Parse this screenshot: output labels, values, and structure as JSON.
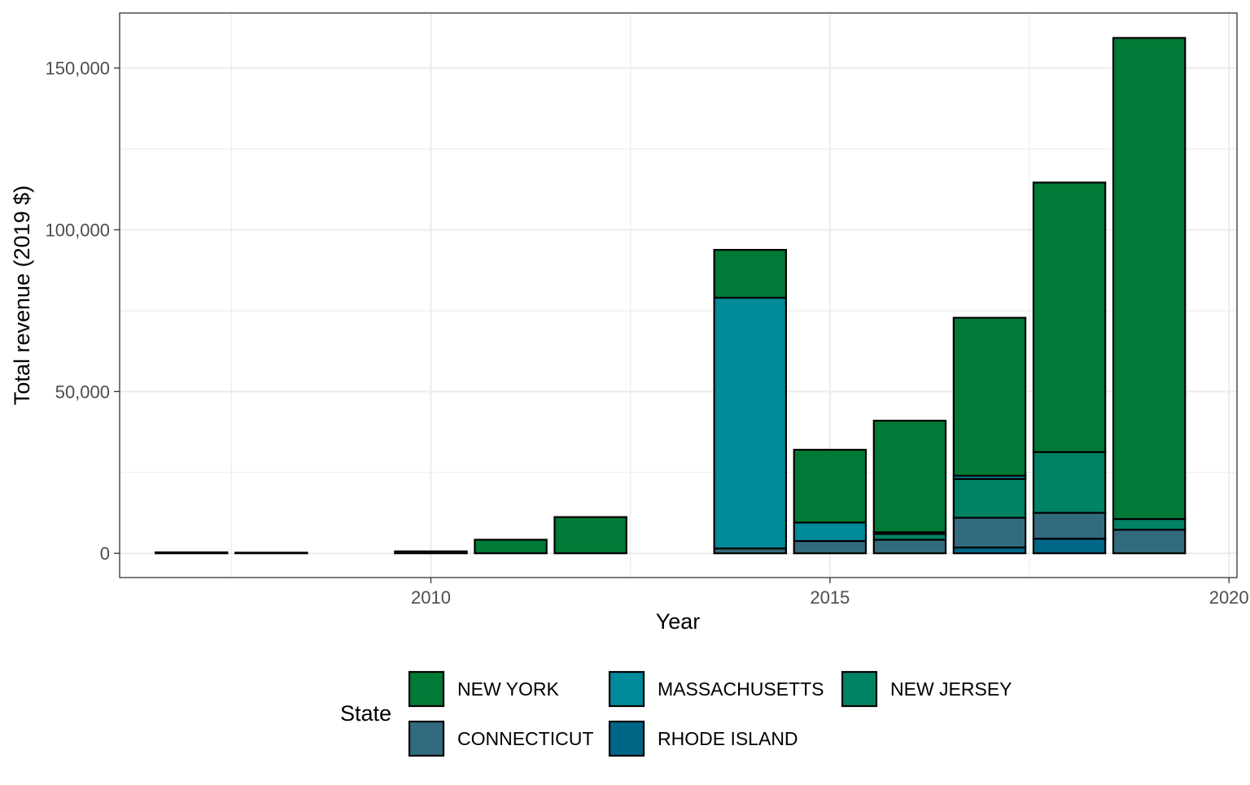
{
  "chart_data": {
    "type": "bar",
    "stacked": true,
    "xlabel": "Year",
    "ylabel": "Total revenue (2019 $)",
    "xlim": [
      2006.1,
      2020.1
    ],
    "ylim": [
      -7500,
      167000
    ],
    "x_ticks": [
      {
        "value": 2010,
        "label": "2010"
      },
      {
        "value": 2015,
        "label": "2015"
      },
      {
        "value": 2020,
        "label": "2020"
      }
    ],
    "y_ticks": [
      {
        "value": 0,
        "label": "0"
      },
      {
        "value": 50000,
        "label": "50,000"
      },
      {
        "value": 100000,
        "label": "100,000"
      },
      {
        "value": 150000,
        "label": "150,000"
      }
    ],
    "grid": true,
    "legend": {
      "title": "State",
      "position": "bottom",
      "entries": [
        {
          "key": "new_york",
          "label": "NEW YORK"
        },
        {
          "key": "massachusetts",
          "label": "MASSACHUSETTS"
        },
        {
          "key": "new_jersey",
          "label": "NEW JERSEY"
        },
        {
          "key": "connecticut",
          "label": "CONNECTICUT"
        },
        {
          "key": "rhode_island",
          "label": "RHODE ISLAND"
        }
      ]
    },
    "colors": {
      "new_york": "#007a36",
      "massachusetts": "#008a9a",
      "new_jersey": "#008264",
      "connecticut": "#336b7e",
      "rhode_island": "#006688"
    },
    "stack_order": [
      "rhode_island",
      "connecticut",
      "new_jersey",
      "massachusetts",
      "new_york"
    ],
    "categories": [
      2007,
      2008,
      2010,
      2011,
      2012,
      2014,
      2015,
      2016,
      2017,
      2018,
      2019
    ],
    "series": [
      {
        "key": "rhode_island",
        "values": [
          0,
          0,
          0,
          0,
          0,
          0,
          0,
          0,
          1800,
          4500,
          0
        ]
      },
      {
        "key": "connecticut",
        "values": [
          300,
          200,
          600,
          0,
          0,
          1500,
          3800,
          4200,
          9200,
          8000,
          7300
        ]
      },
      {
        "key": "new_jersey",
        "values": [
          0,
          0,
          0,
          0,
          0,
          0,
          0,
          1800,
          12000,
          18800,
          3300
        ]
      },
      {
        "key": "massachusetts",
        "values": [
          0,
          0,
          0,
          0,
          0,
          77500,
          5700,
          500,
          1000,
          0,
          0
        ]
      },
      {
        "key": "new_york",
        "values": [
          0,
          0,
          0,
          4200,
          11200,
          14800,
          22500,
          34500,
          48800,
          83300,
          148700
        ]
      }
    ]
  }
}
